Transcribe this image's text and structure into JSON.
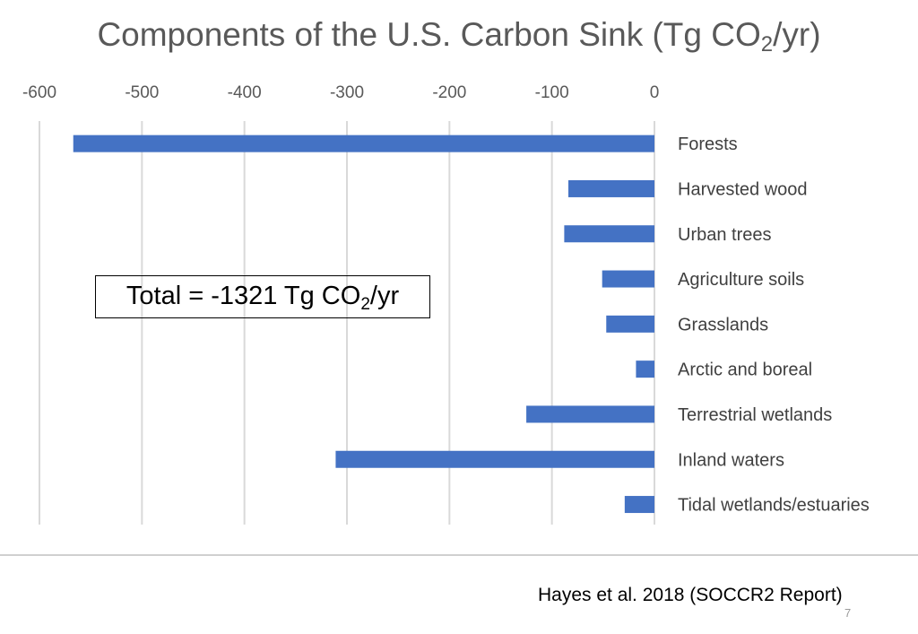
{
  "slide": {
    "title_main": "Components of the U.S. Carbon Sink (Tg CO",
    "title_sub": "2",
    "title_end": "/yr)",
    "total_main": "Total = -1321 Tg CO",
    "total_sub": "2",
    "total_end": "/yr",
    "citation": "Hayes et al. 2018 (SOCCR2 Report)",
    "slide_number": "7"
  },
  "chart_data": {
    "type": "bar",
    "orientation": "horizontal",
    "title": "Components of the U.S. Carbon Sink (Tg CO2/yr)",
    "categories": [
      "Forests",
      "Harvested wood",
      "Urban trees",
      "Agriculture soils",
      "Grasslands",
      "Arctic and boreal",
      "Terrestrial wetlands",
      "Inland waters",
      "Tidal wetlands/estuaries"
    ],
    "values": [
      -567,
      -84,
      -88,
      -51,
      -47,
      -18,
      -125,
      -311,
      -29
    ],
    "xlim": [
      -600,
      0
    ],
    "xticks": [
      -600,
      -500,
      -400,
      -300,
      -200,
      -100,
      0
    ],
    "xtick_labels": [
      "-600",
      "-500",
      "-400",
      "-300",
      "-200",
      "-100",
      "0"
    ],
    "x_axis_position": "top",
    "grid": true,
    "colors": {
      "bar": "#4472C4",
      "grid": "#d9d9d9",
      "text": "#595959",
      "label": "#404040"
    }
  }
}
